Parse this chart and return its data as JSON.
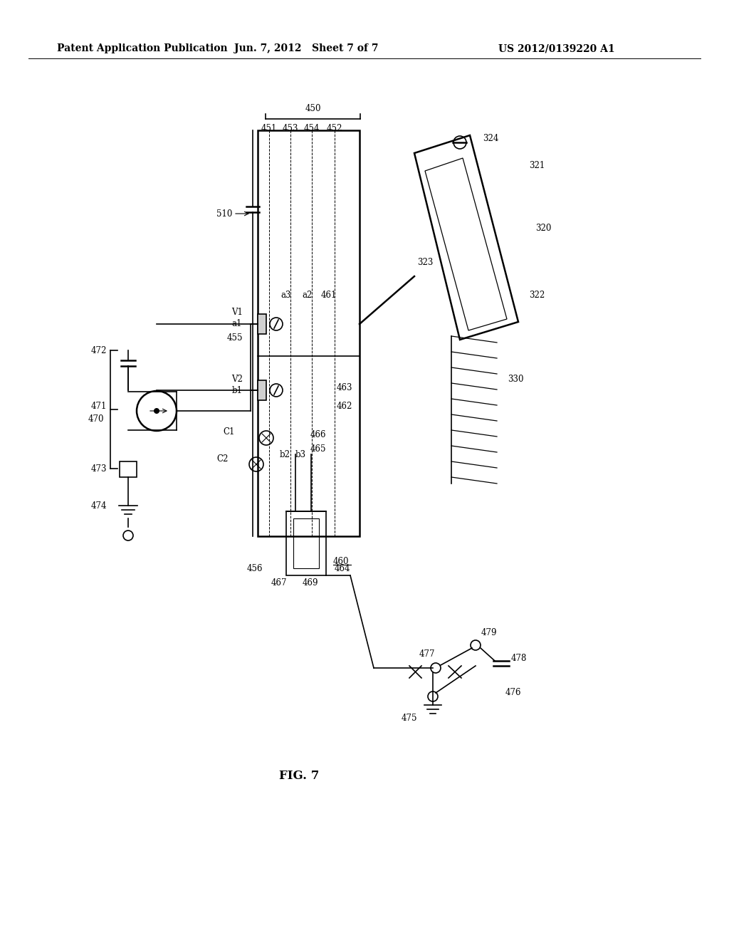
{
  "bg_color": "#ffffff",
  "header_left": "Patent Application Publication",
  "header_center": "Jun. 7, 2012   Sheet 7 of 7",
  "header_right": "US 2012/0139220 A1",
  "fig_label": "FIG. 7",
  "title_fontsize": 10,
  "label_fontsize": 8.5
}
